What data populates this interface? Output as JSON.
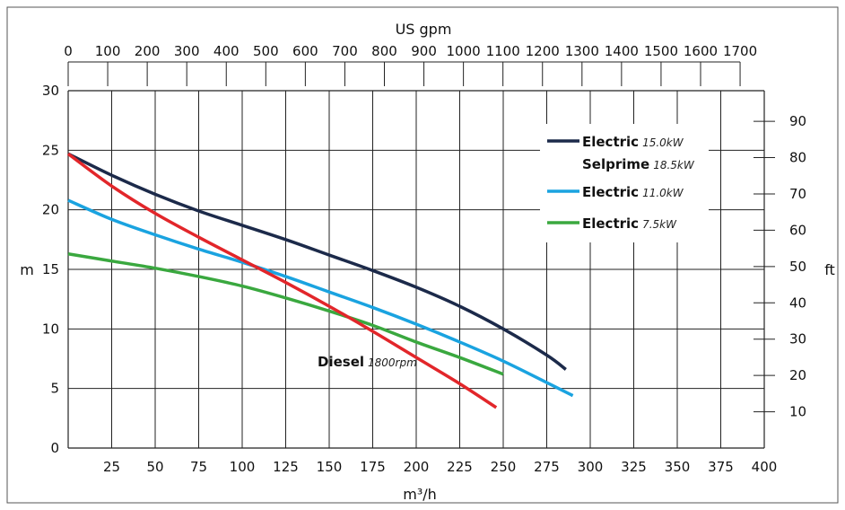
{
  "chart_data": {
    "type": "line",
    "title": "",
    "x_bottom": {
      "label": "m³/h",
      "range": [
        0,
        400
      ],
      "ticks": [
        25,
        50,
        75,
        100,
        125,
        150,
        175,
        200,
        225,
        250,
        275,
        300,
        325,
        350,
        375,
        400
      ]
    },
    "x_top": {
      "label": "US gpm",
      "ticks": [
        0,
        100,
        200,
        300,
        400,
        500,
        600,
        700,
        800,
        900,
        1000,
        1100,
        1200,
        1300,
        1400,
        1500,
        1600,
        1700
      ]
    },
    "y_left": {
      "label": "m",
      "range": [
        0,
        30
      ],
      "ticks": [
        0,
        5,
        10,
        15,
        20,
        25,
        30
      ]
    },
    "y_right": {
      "label": "ft",
      "ticks": [
        10,
        20,
        30,
        40,
        50,
        60,
        70,
        80,
        90
      ]
    },
    "grid": true,
    "legend_position": "top-right",
    "series": [
      {
        "name": "Electric",
        "unit": "15.0kW",
        "name2": "Selprime",
        "unit2": "18.5kW",
        "color": "#1c2a4a",
        "x": [
          0,
          25,
          50,
          75,
          100,
          125,
          150,
          175,
          200,
          225,
          250,
          275,
          286
        ],
        "y": [
          24.7,
          22.9,
          21.3,
          19.9,
          18.7,
          17.5,
          16.2,
          14.9,
          13.5,
          11.9,
          10.0,
          7.8,
          6.6
        ]
      },
      {
        "name": "Electric",
        "unit": "11.0kW",
        "color": "#1aa3e0",
        "x": [
          0,
          25,
          50,
          75,
          100,
          125,
          150,
          175,
          200,
          225,
          250,
          275,
          290
        ],
        "y": [
          20.8,
          19.2,
          17.9,
          16.7,
          15.6,
          14.4,
          13.1,
          11.8,
          10.4,
          8.9,
          7.3,
          5.5,
          4.4
        ]
      },
      {
        "name": "Electric",
        "unit": "7.5kW",
        "color": "#3aa83f",
        "x": [
          0,
          25,
          50,
          75,
          100,
          125,
          150,
          175,
          200,
          225,
          250
        ],
        "y": [
          16.3,
          15.7,
          15.1,
          14.4,
          13.6,
          12.6,
          11.5,
          10.3,
          8.9,
          7.6,
          6.2
        ]
      },
      {
        "name": "Diesel",
        "unit": "1800rpm",
        "color": "#e2262a",
        "x": [
          0,
          25,
          50,
          75,
          100,
          125,
          150,
          175,
          200,
          225,
          246
        ],
        "y": [
          24.7,
          22.0,
          19.7,
          17.7,
          15.8,
          13.9,
          11.9,
          9.8,
          7.6,
          5.4,
          3.4
        ]
      }
    ]
  }
}
